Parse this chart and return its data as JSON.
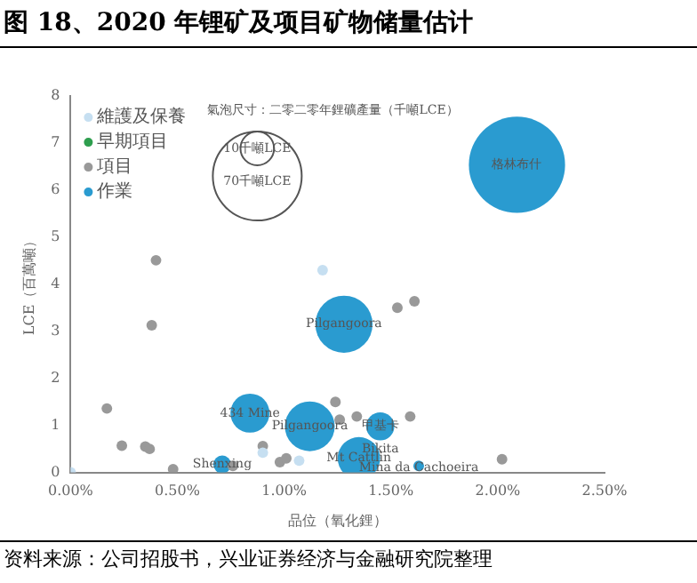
{
  "chart_data": {
    "type": "bubble",
    "title": "图 18、2020 年锂矿及项目矿物储量估计",
    "xlabel": "品位（氧化鋰）",
    "ylabel": "LCE（百萬噸）",
    "legend_title": "氣泡尺寸：二零二零年鋰礦產量（千噸LCE）",
    "size_legend": [
      {
        "value": 10,
        "label": "10千噸LCE"
      },
      {
        "value": 70,
        "label": "70千噸LCE"
      }
    ],
    "xlim": [
      0,
      2.5
    ],
    "xticks": [
      {
        "value": 0,
        "label": "0.00%"
      },
      {
        "value": 0.5,
        "label": "0.50%"
      },
      {
        "value": 1,
        "label": "1.00%"
      },
      {
        "value": 1.5,
        "label": "1.50%"
      },
      {
        "value": 2,
        "label": "2.00%"
      },
      {
        "value": 2.5,
        "label": "2.50%"
      }
    ],
    "ylim": [
      0,
      8
    ],
    "yticks": [
      0,
      1,
      2,
      3,
      4,
      5,
      6,
      7,
      8
    ],
    "grid": false,
    "legend": "top left",
    "series": [
      {
        "name": "維護及保養",
        "color": "#c6dff1",
        "x": [
          1.18,
          0.9,
          1.07,
          0.0
        ],
        "values": [
          4.3,
          0.42,
          0.25,
          0.0
        ],
        "sizes": [
          1,
          1,
          1,
          1
        ]
      },
      {
        "name": "早期項目",
        "color": "#2e9e4e"
      },
      {
        "name": "項目",
        "color": "#999999",
        "x": [
          0.17,
          0.24,
          0.35,
          0.37,
          0.4,
          0.38,
          0.48,
          0.76,
          0.9,
          0.98,
          1.01,
          1.24,
          1.26,
          1.34,
          1.59,
          1.53,
          1.61,
          2.02
        ],
        "values": [
          1.36,
          0.57,
          0.55,
          0.5,
          4.51,
          3.13,
          0.07,
          0.14,
          0.56,
          0.22,
          0.3,
          1.5,
          1.12,
          1.19,
          1.19,
          3.5,
          3.64,
          0.28
        ],
        "sizes": [
          1,
          1,
          1,
          1,
          1,
          1,
          1,
          1,
          1,
          1,
          1,
          1,
          1,
          1,
          1,
          1,
          1,
          1
        ]
      },
      {
        "name": "作業",
        "color": "#2a9bd0",
        "x": [
          2.09,
          1.28,
          0.84,
          1.12,
          1.45,
          1.35,
          0.71,
          1.63
        ],
        "values": [
          6.54,
          3.15,
          1.26,
          0.98,
          0.98,
          0.3,
          0.17,
          0.14
        ],
        "sizes": [
          82,
          29,
          13.5,
          22,
          7,
          16,
          2.8,
          1
        ]
      }
    ],
    "annotations": [
      {
        "text": "格林布什",
        "x": 2.09,
        "y": 6.54
      },
      {
        "text": "Pilgangoora",
        "x": 1.28,
        "y": 3.15
      },
      {
        "text": "434 Mine",
        "x": 0.84,
        "y": 1.26
      },
      {
        "text": "Pilgangoora",
        "x": 1.12,
        "y": 0.98
      },
      {
        "text": "甲基卡",
        "x": 1.45,
        "y": 0.98
      },
      {
        "text": "Bikita",
        "x": 1.45,
        "y": 0.5
      },
      {
        "text": "Mt Cattlin",
        "x": 1.35,
        "y": 0.3
      },
      {
        "text": "Shenxing",
        "x": 0.71,
        "y": 0.17
      },
      {
        "text": "Mina da Cachoeira",
        "x": 1.63,
        "y": 0.1
      },
      "资料来源：公司招股书，兴业证券经济与金融研究院整理"
    ]
  }
}
